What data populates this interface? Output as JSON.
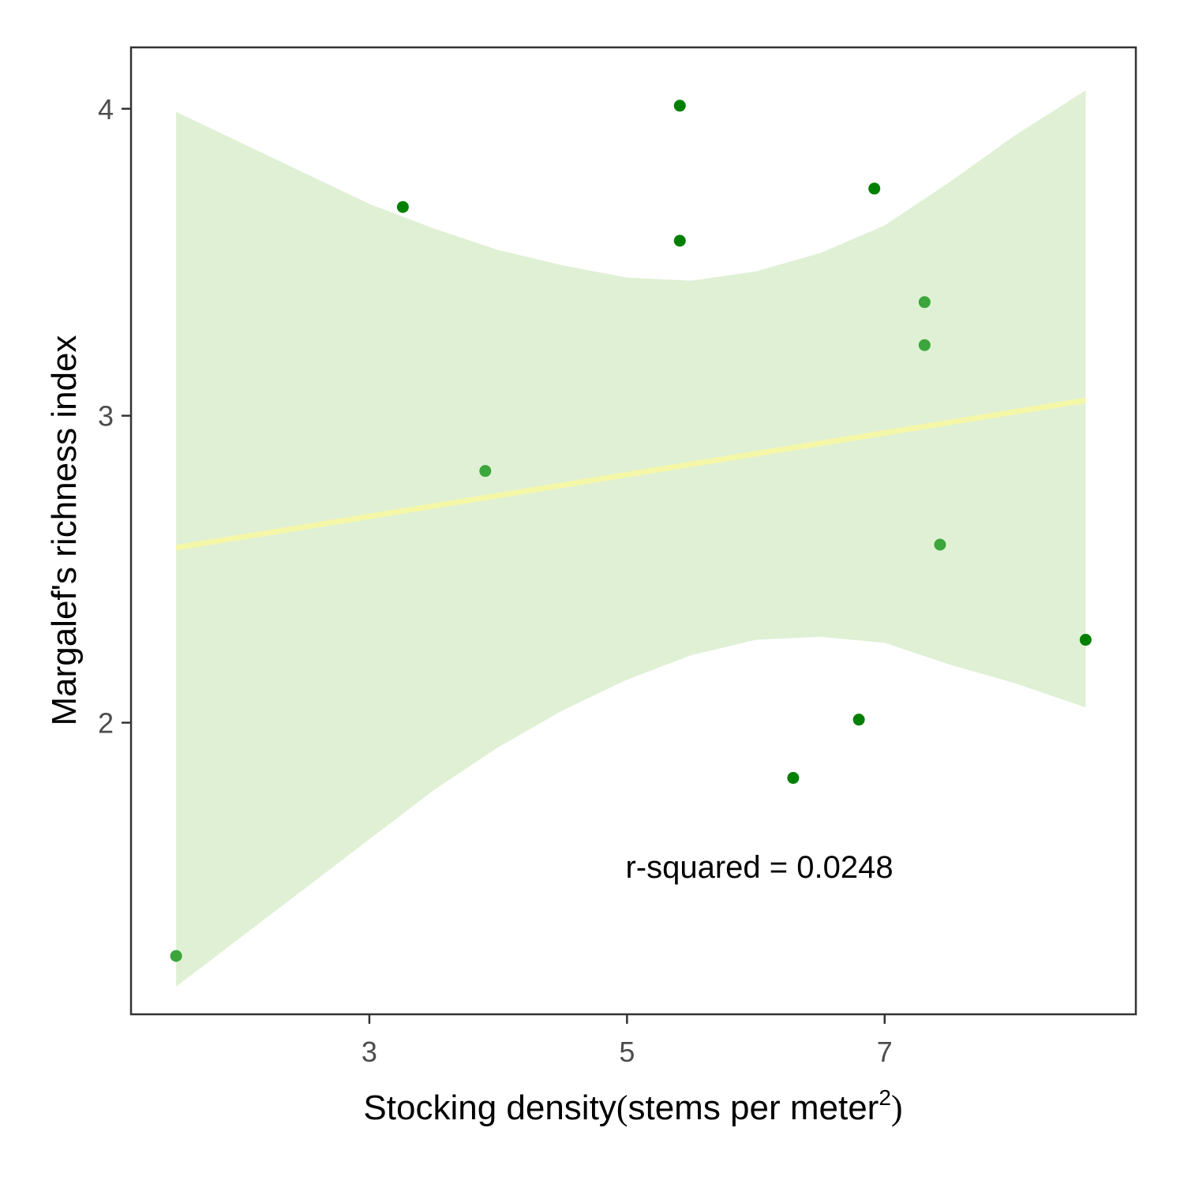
{
  "chart_data": {
    "type": "scatter",
    "xlabel": "Stocking density",
    "xlabel_paren_open": "(",
    "xlabel_units": "stems per meter",
    "xlabel_superscript": "2",
    "xlabel_paren_close": ")",
    "ylabel": "Margalef's richness index",
    "xlim": [
      1.15,
      8.95
    ],
    "ylim": [
      1.05,
      4.2
    ],
    "x_ticks": [
      3,
      5,
      7
    ],
    "y_ticks": [
      2,
      3,
      4
    ],
    "x_tick_labels": [
      "3",
      "5",
      "7"
    ],
    "y_tick_labels": [
      "2",
      "3",
      "4"
    ],
    "grid": false,
    "annotation": "r-squared = 0.0248",
    "points": [
      {
        "x": 1.5,
        "y": 1.24,
        "color": "#3ca53c"
      },
      {
        "x": 3.26,
        "y": 3.68,
        "color": "#008000"
      },
      {
        "x": 3.9,
        "y": 2.82,
        "color": "#3ca53c"
      },
      {
        "x": 5.41,
        "y": 4.01,
        "color": "#008000"
      },
      {
        "x": 5.41,
        "y": 3.57,
        "color": "#008000"
      },
      {
        "x": 6.29,
        "y": 1.82,
        "color": "#008000"
      },
      {
        "x": 6.8,
        "y": 2.01,
        "color": "#008000"
      },
      {
        "x": 6.92,
        "y": 3.74,
        "color": "#008000"
      },
      {
        "x": 7.31,
        "y": 3.37,
        "color": "#3ca53c"
      },
      {
        "x": 7.31,
        "y": 3.23,
        "color": "#3ca53c"
      },
      {
        "x": 7.43,
        "y": 2.58,
        "color": "#3ca53c"
      },
      {
        "x": 8.56,
        "y": 2.27,
        "color": "#008000"
      }
    ],
    "fit_line": {
      "x": [
        1.5,
        8.56
      ],
      "y": [
        2.57,
        3.05
      ],
      "color": "#f5f7a8"
    },
    "confidence_band": {
      "color": "#dff0d4",
      "x": [
        1.5,
        2.0,
        2.5,
        3.0,
        3.5,
        4.0,
        4.5,
        5.0,
        5.5,
        6.0,
        6.5,
        7.0,
        7.5,
        8.0,
        8.56
      ],
      "upper": [
        3.99,
        3.89,
        3.79,
        3.69,
        3.61,
        3.54,
        3.49,
        3.45,
        3.44,
        3.47,
        3.53,
        3.62,
        3.76,
        3.91,
        4.06
      ],
      "lower": [
        1.14,
        1.3,
        1.46,
        1.62,
        1.78,
        1.92,
        2.04,
        2.14,
        2.22,
        2.27,
        2.28,
        2.26,
        2.19,
        2.13,
        2.05
      ]
    },
    "colors": {
      "panel_border": "#333333",
      "tick": "#333333"
    }
  }
}
